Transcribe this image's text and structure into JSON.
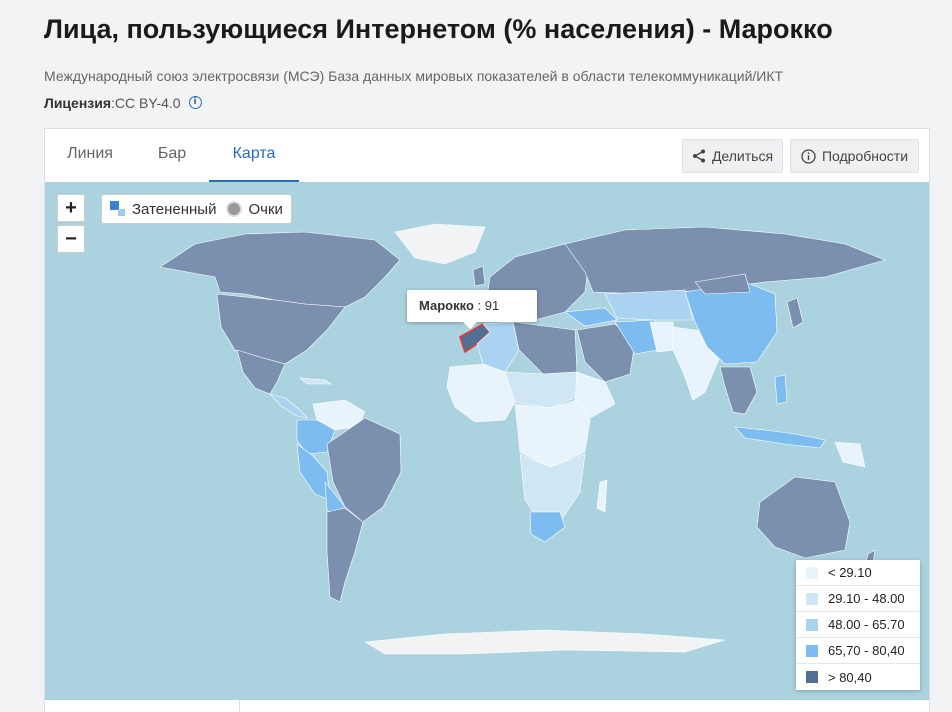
{
  "page": {
    "title": "Лица, пользующиеся Интернетом (% населения) - Марокко",
    "subtitle": "Международный союз электросвязи (МСЭ) База данных мировых показателей в области телекоммуникаций/ИКТ",
    "license_label": "Лицензия",
    "license_value": " :CC BY-4.0",
    "license_info_icon": "info-icon"
  },
  "tabs": [
    {
      "label": "Линия",
      "active": false
    },
    {
      "label": "Бар",
      "active": false
    },
    {
      "label": "Карта",
      "active": true
    }
  ],
  "actions": {
    "share_label": "Делиться",
    "share_icon": "share-icon",
    "details_label": "Подробности",
    "details_icon": "info-icon"
  },
  "map": {
    "zoom_in": "+",
    "zoom_out": "−",
    "mode_shaded": "Затененный",
    "mode_points": "Очки",
    "tooltip_country": "Марокко",
    "tooltip_value": " : 91",
    "colors": {
      "ocean": "#abd3df",
      "bin1": "#e8f3fb",
      "bin2": "#cfe6f5",
      "bin3": "#a9d3f0",
      "bin4": "#7cbcf0",
      "bin5": "#7b8fae",
      "nodata": "#f2f3f4",
      "highlight": "#e53935"
    },
    "legend": [
      {
        "label": "< 29.10",
        "color": "#e8f3fb"
      },
      {
        "label": "29.10 - 48.00",
        "color": "#cfe6f5"
      },
      {
        "label": "48.00 - 65.70",
        "color": "#a9d3f0"
      },
      {
        "label": "65,70 - 80,40",
        "color": "#7cbcf0"
      },
      {
        "label": "> 80,40",
        "color": "#526f94"
      }
    ]
  }
}
